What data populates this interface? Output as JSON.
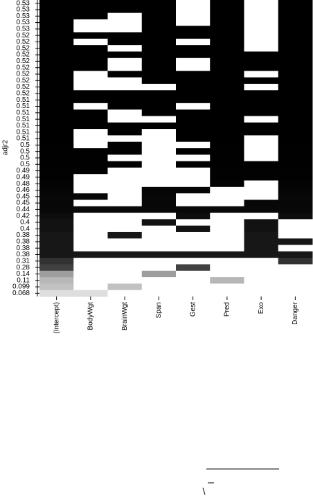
{
  "chart_data": {
    "type": "subset-image",
    "ylabel": "adjr2",
    "columns": [
      "(Intercept)",
      "BodyWgt",
      "BrainWgt",
      "Span",
      "Gest",
      "Pred",
      "Exo",
      "Danger"
    ],
    "row_values": [
      0.53,
      0.53,
      0.53,
      0.53,
      0.53,
      0.52,
      0.52,
      0.52,
      0.52,
      0.52,
      0.52,
      0.52,
      0.52,
      0.52,
      0.52,
      0.51,
      0.51,
      0.51,
      0.51,
      0.51,
      0.51,
      0.51,
      0.5,
      0.5,
      0.5,
      0.5,
      0.49,
      0.49,
      0.48,
      0.46,
      0.45,
      0.45,
      0.44,
      0.42,
      0.4,
      0.4,
      0.38,
      0.38,
      0.38,
      0.38,
      0.31,
      0.28,
      0.14,
      0.11,
      0.099,
      0.068
    ],
    "included": [
      [
        1,
        1,
        1,
        1,
        0,
        1,
        0,
        1
      ],
      [
        1,
        1,
        1,
        1,
        0,
        1,
        0,
        1
      ],
      [
        1,
        1,
        0,
        1,
        0,
        1,
        0,
        1
      ],
      [
        1,
        0,
        0,
        1,
        0,
        1,
        0,
        1
      ],
      [
        1,
        0,
        0,
        1,
        1,
        1,
        0,
        1
      ],
      [
        1,
        1,
        1,
        1,
        1,
        1,
        0,
        1
      ],
      [
        1,
        0,
        1,
        1,
        0,
        1,
        0,
        1
      ],
      [
        1,
        1,
        0,
        1,
        1,
        1,
        0,
        1
      ],
      [
        1,
        1,
        1,
        1,
        1,
        1,
        1,
        1
      ],
      [
        1,
        1,
        0,
        1,
        0,
        1,
        1,
        1
      ],
      [
        1,
        1,
        0,
        1,
        0,
        1,
        1,
        1
      ],
      [
        1,
        0,
        1,
        1,
        1,
        1,
        0,
        1
      ],
      [
        1,
        0,
        0,
        1,
        1,
        1,
        1,
        1
      ],
      [
        1,
        0,
        0,
        0,
        1,
        1,
        0,
        1
      ],
      [
        1,
        1,
        1,
        1,
        1,
        1,
        1,
        1
      ],
      [
        1,
        1,
        1,
        1,
        1,
        1,
        1,
        1
      ],
      [
        1,
        0,
        1,
        1,
        0,
        1,
        1,
        1
      ],
      [
        1,
        1,
        0,
        1,
        1,
        1,
        1,
        1
      ],
      [
        1,
        1,
        0,
        0,
        1,
        1,
        0,
        1
      ],
      [
        1,
        1,
        1,
        1,
        1,
        1,
        1,
        1
      ],
      [
        1,
        0,
        1,
        0,
        1,
        1,
        1,
        1
      ],
      [
        1,
        0,
        0,
        0,
        1,
        1,
        0,
        1
      ],
      [
        1,
        0,
        1,
        0,
        0,
        1,
        0,
        1
      ],
      [
        1,
        1,
        1,
        0,
        1,
        1,
        0,
        1
      ],
      [
        1,
        1,
        0,
        0,
        0,
        1,
        0,
        1
      ],
      [
        1,
        1,
        1,
        0,
        1,
        1,
        1,
        1
      ],
      [
        1,
        1,
        0,
        0,
        0,
        1,
        1,
        1
      ],
      [
        1,
        0,
        0,
        0,
        0,
        1,
        1,
        1
      ],
      [
        1,
        0,
        0,
        0,
        0,
        1,
        0,
        1
      ],
      [
        1,
        0,
        0,
        1,
        1,
        0,
        0,
        1
      ],
      [
        1,
        1,
        0,
        1,
        0,
        0,
        0,
        1
      ],
      [
        1,
        0,
        0,
        1,
        0,
        0,
        1,
        1
      ],
      [
        1,
        1,
        1,
        1,
        1,
        1,
        1,
        1
      ],
      [
        1,
        0,
        0,
        0,
        1,
        0,
        0,
        1
      ],
      [
        1,
        0,
        0,
        1,
        0,
        0,
        1,
        0
      ],
      [
        1,
        0,
        0,
        0,
        1,
        0,
        1,
        0
      ],
      [
        1,
        0,
        1,
        0,
        0,
        0,
        1,
        0
      ],
      [
        1,
        0,
        0,
        0,
        0,
        0,
        1,
        1
      ],
      [
        1,
        0,
        0,
        0,
        0,
        0,
        1,
        0
      ],
      [
        1,
        1,
        1,
        1,
        1,
        1,
        1,
        1
      ],
      [
        1,
        0,
        0,
        0,
        0,
        0,
        0,
        1
      ],
      [
        1,
        0,
        0,
        0,
        1,
        0,
        0,
        0
      ],
      [
        1,
        0,
        0,
        1,
        0,
        0,
        0,
        0
      ],
      [
        1,
        0,
        0,
        0,
        0,
        1,
        0,
        0
      ],
      [
        1,
        0,
        1,
        0,
        0,
        0,
        0,
        0
      ],
      [
        1,
        1,
        0,
        0,
        0,
        0,
        0,
        0
      ]
    ]
  }
}
